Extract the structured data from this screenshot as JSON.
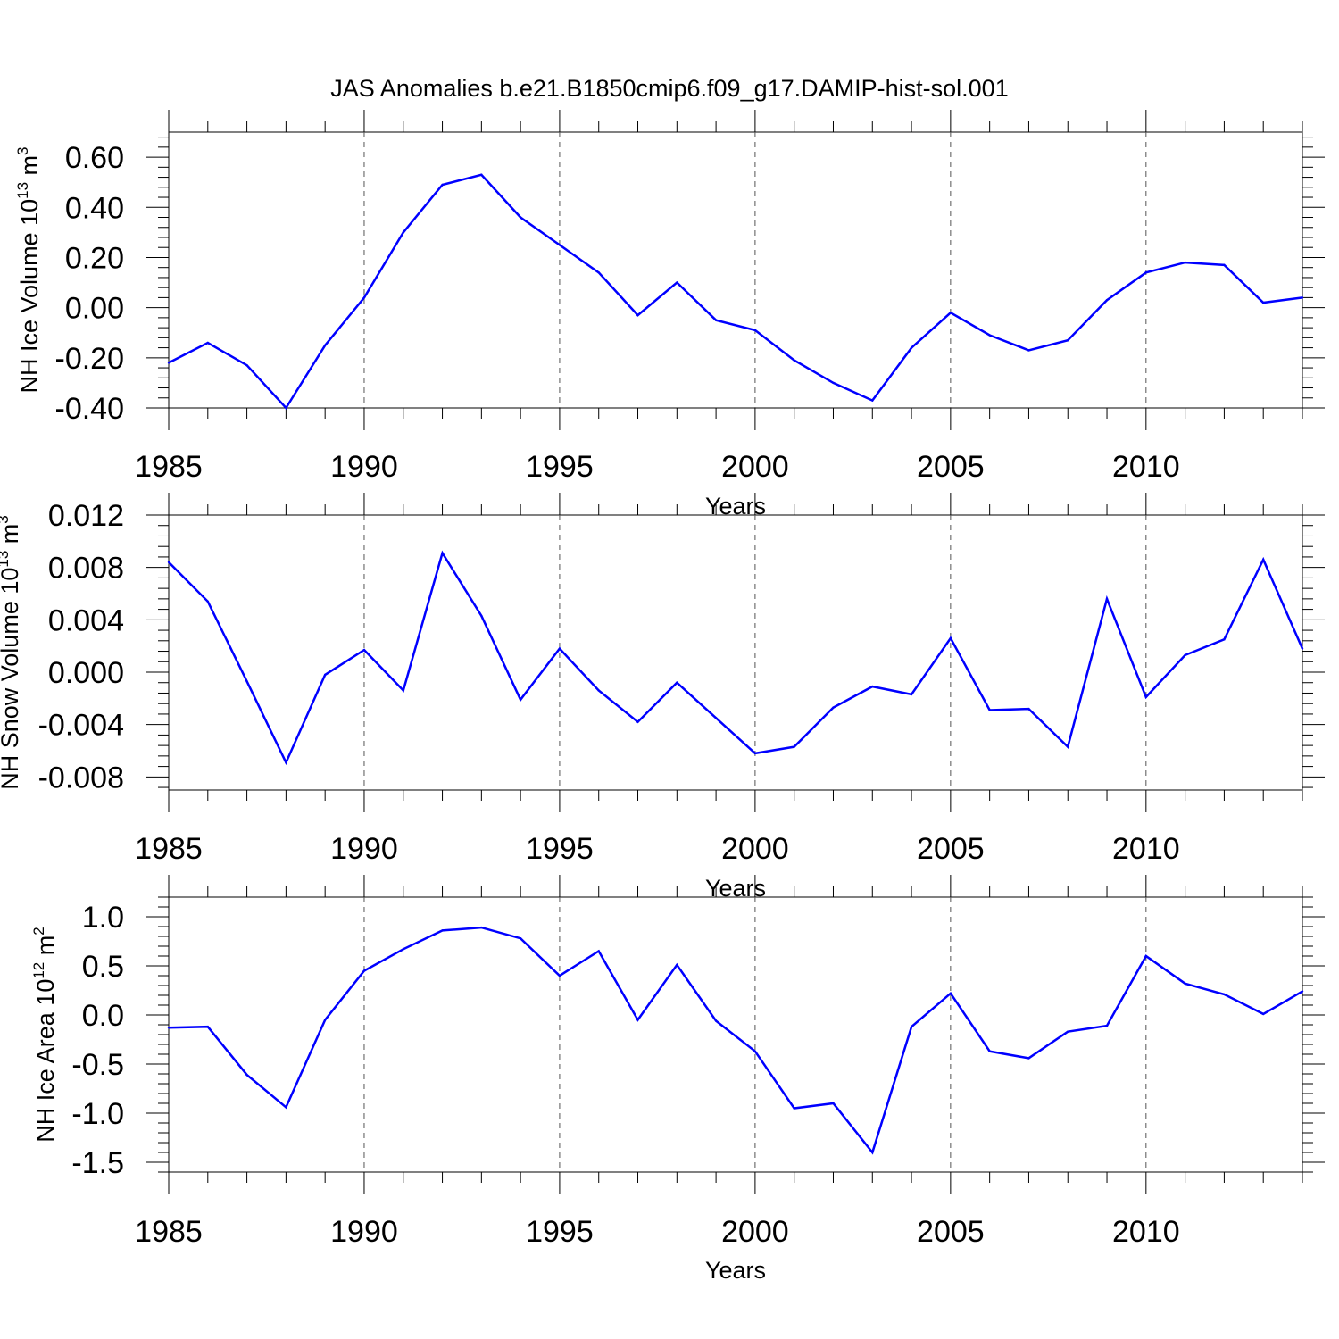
{
  "title": "JAS Anomalies b.e21.B1850cmip6.f09_g17.DAMIP-hist-sol.001",
  "colors": {
    "series": "#0000ff",
    "axis": "#000000",
    "grid": "#555555"
  },
  "chart_data": [
    {
      "type": "line",
      "ylabel_main": "NH Ice Volume 10",
      "ylabel_exp": "13",
      "ylabel_unit": "m",
      "ylabel_unit_exp": "3",
      "xlabel": "Years",
      "xlim": [
        1985,
        2014
      ],
      "ylim": [
        -0.4,
        0.7
      ],
      "yticks": [
        -0.4,
        -0.2,
        0.0,
        0.2,
        0.4,
        0.6
      ],
      "ytick_labels": [
        "-0.40",
        "-0.20",
        "0.00",
        "0.20",
        "0.40",
        "0.60"
      ],
      "xticks": [
        1985,
        1990,
        1995,
        2000,
        2005,
        2010
      ],
      "xtick_labels": [
        "1985",
        "1990",
        "1995",
        "2000",
        "2005",
        "2010"
      ],
      "x": [
        1985,
        1986,
        1987,
        1988,
        1989,
        1990,
        1991,
        1992,
        1993,
        1994,
        1995,
        1996,
        1997,
        1998,
        1999,
        2000,
        2001,
        2002,
        2003,
        2004,
        2005,
        2006,
        2007,
        2008,
        2009,
        2010,
        2011,
        2012,
        2013,
        2014
      ],
      "values": [
        -0.22,
        -0.14,
        -0.23,
        -0.4,
        -0.15,
        0.04,
        0.3,
        0.49,
        0.53,
        0.36,
        0.25,
        0.14,
        -0.03,
        0.1,
        -0.05,
        -0.09,
        -0.21,
        -0.3,
        -0.37,
        -0.16,
        -0.02,
        -0.11,
        -0.17,
        -0.13,
        0.03,
        0.14,
        0.18,
        0.17,
        0.02,
        0.04
      ]
    },
    {
      "type": "line",
      "ylabel_main": "NH Snow Volume 10",
      "ylabel_exp": "13",
      "ylabel_unit": "m",
      "ylabel_unit_exp": "3",
      "xlabel": "Years",
      "xlim": [
        1985,
        2014
      ],
      "ylim": [
        -0.009,
        0.012
      ],
      "yticks": [
        -0.008,
        -0.004,
        0.0,
        0.004,
        0.008,
        0.012
      ],
      "ytick_labels": [
        "-0.008",
        "-0.004",
        "0.000",
        "0.004",
        "0.008",
        "0.012"
      ],
      "xticks": [
        1985,
        1990,
        1995,
        2000,
        2005,
        2010
      ],
      "xtick_labels": [
        "1985",
        "1990",
        "1995",
        "2000",
        "2005",
        "2010"
      ],
      "x": [
        1985,
        1986,
        1987,
        1988,
        1989,
        1990,
        1991,
        1992,
        1993,
        1994,
        1995,
        1996,
        1997,
        1998,
        1999,
        2000,
        2001,
        2002,
        2003,
        2004,
        2005,
        2006,
        2007,
        2008,
        2009,
        2010,
        2011,
        2012,
        2013,
        2014
      ],
      "values": [
        0.0084,
        0.0054,
        -0.0007,
        -0.0069,
        -0.0002,
        0.0017,
        -0.0014,
        0.0091,
        0.0043,
        -0.0021,
        0.0018,
        -0.0014,
        -0.0038,
        -0.0008,
        -0.0035,
        -0.0062,
        -0.0057,
        -0.0027,
        -0.0011,
        -0.0017,
        0.0026,
        -0.0029,
        -0.0028,
        -0.0057,
        0.0056,
        -0.0019,
        0.0013,
        0.0025,
        0.0086,
        0.0018
      ]
    },
    {
      "type": "line",
      "ylabel_main": "NH Ice Area 10",
      "ylabel_exp": "12",
      "ylabel_unit": "m",
      "ylabel_unit_exp": "2",
      "xlabel": "Years",
      "xlim": [
        1985,
        2014
      ],
      "ylim": [
        -1.6,
        1.2
      ],
      "yticks": [
        -1.5,
        -1.0,
        -0.5,
        0.0,
        0.5,
        1.0
      ],
      "ytick_labels": [
        "-1.5",
        "-1.0",
        "-0.5",
        "0.0",
        "0.5",
        "1.0"
      ],
      "xticks": [
        1985,
        1990,
        1995,
        2000,
        2005,
        2010
      ],
      "xtick_labels": [
        "1985",
        "1990",
        "1995",
        "2000",
        "2005",
        "2010"
      ],
      "x": [
        1985,
        1986,
        1987,
        1988,
        1989,
        1990,
        1991,
        1992,
        1993,
        1994,
        1995,
        1996,
        1997,
        1998,
        1999,
        2000,
        2001,
        2002,
        2003,
        2004,
        2005,
        2006,
        2007,
        2008,
        2009,
        2010,
        2011,
        2012,
        2013,
        2014
      ],
      "values": [
        -0.13,
        -0.12,
        -0.61,
        -0.94,
        -0.05,
        0.45,
        0.67,
        0.86,
        0.89,
        0.78,
        0.4,
        0.65,
        -0.05,
        0.51,
        -0.06,
        -0.37,
        -0.95,
        -0.9,
        -1.4,
        -0.12,
        0.22,
        -0.37,
        -0.44,
        -0.17,
        -0.11,
        0.6,
        0.32,
        0.21,
        0.01,
        0.24
      ]
    }
  ]
}
